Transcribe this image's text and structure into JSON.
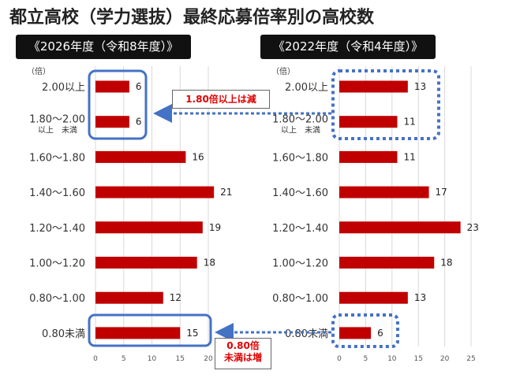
{
  "title": "都立高校（学力選抜）最終応募倍率別の高校数",
  "colors": {
    "bar": "#c00000",
    "highlight_solid": "#4472c4",
    "highlight_dotted": "#4472c4",
    "callout_text": "#e00000"
  },
  "chart_data": [
    {
      "type": "bar",
      "orientation": "horizontal",
      "title": "《2026年度（令和8年度）》",
      "unit": "（倍）",
      "categories": [
        "2.00以上",
        "1.80〜2.00",
        "1.60〜1.80",
        "1.40〜1.60",
        "1.20〜1.40",
        "1.00〜1.20",
        "0.80〜1.00",
        "0.80未満"
      ],
      "category_sublabels": [
        "",
        "以上　未満",
        "",
        "",
        "",
        "",
        "",
        ""
      ],
      "values": [
        6,
        6,
        16,
        21,
        19,
        18,
        12,
        15
      ],
      "xlim": [
        0,
        20
      ],
      "xticks": [
        0,
        5,
        10,
        15,
        20
      ],
      "grid": "vertical"
    },
    {
      "type": "bar",
      "orientation": "horizontal",
      "title": "《2022年度（令和4年度）》",
      "unit": "（倍）",
      "categories": [
        "2.00以上",
        "1.80〜2.00",
        "1.60〜1.80",
        "1.40〜1.60",
        "1.20〜1.40",
        "1.00〜1.20",
        "0.80〜1.00",
        "0.80未満"
      ],
      "category_sublabels": [
        "",
        "以上　未満",
        "",
        "",
        "",
        "",
        "",
        ""
      ],
      "values": [
        13,
        11,
        11,
        17,
        23,
        18,
        13,
        6
      ],
      "xlim": [
        0,
        25
      ],
      "xticks": [
        0,
        5,
        10,
        15,
        20,
        25
      ],
      "grid": "vertical"
    }
  ],
  "annotations": {
    "callout_top": "1.80倍以上は減",
    "callout_bottom_line1": "0.80倍",
    "callout_bottom_line2": "未満は増"
  }
}
